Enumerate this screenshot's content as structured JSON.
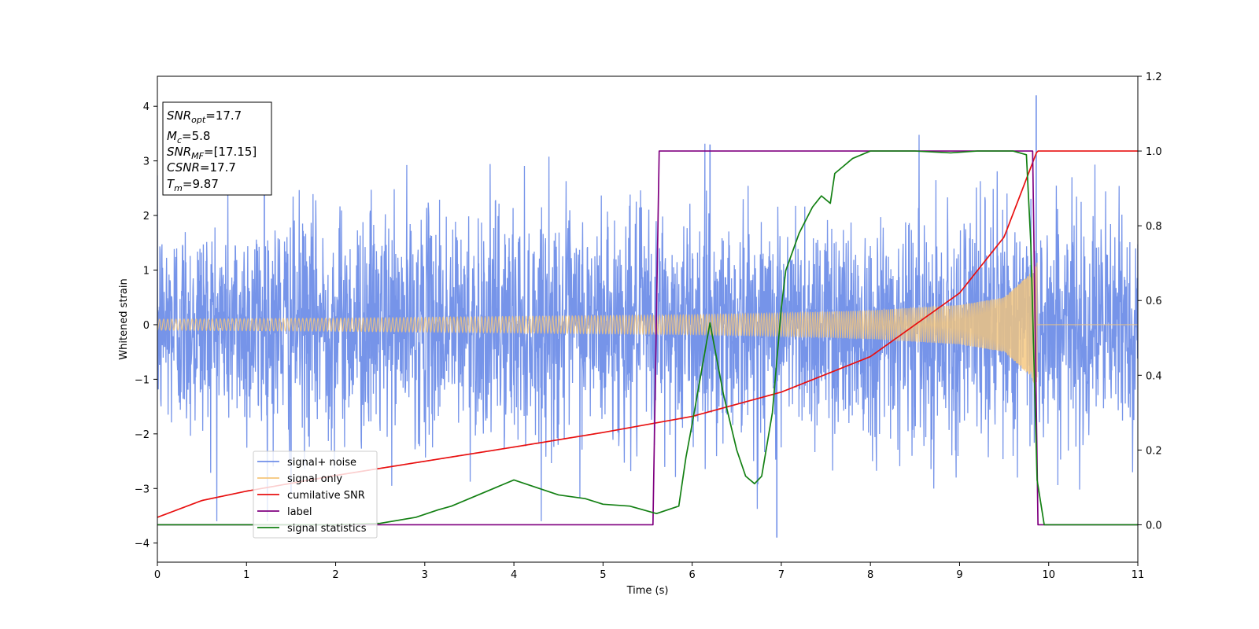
{
  "chart_data": {
    "type": "line",
    "xlabel": "Time (s)",
    "ylabel": "Whitened strain",
    "xlim": [
      0,
      11
    ],
    "ylim_left": [
      -4.35,
      4.55
    ],
    "ylim_right": [
      -0.1,
      1.2
    ],
    "xticks": [
      0,
      1,
      2,
      3,
      4,
      5,
      6,
      7,
      8,
      9,
      10,
      11
    ],
    "yticks_left": [
      -4,
      -3,
      -2,
      -1,
      0,
      1,
      2,
      3,
      4
    ],
    "yticks_right": [
      0.0,
      0.2,
      0.4,
      0.6,
      0.8,
      1.0,
      1.2
    ],
    "right_axis": true,
    "grid": false,
    "legend_position": "lower-left",
    "info_box": {
      "snr_opt": {
        "base": "SNR",
        "sub": "opt",
        "value": "=17.7"
      },
      "mc": {
        "base": "M",
        "sub": "c",
        "value": "=5.8"
      },
      "snr_mf": {
        "base": "SNR",
        "sub": "MF",
        "value": "=[17.15]"
      },
      "csnr": {
        "base": "CSNR",
        "value": "=17.7"
      },
      "tm": {
        "base": "T",
        "sub": "m",
        "value": "=9.87"
      }
    },
    "series": [
      {
        "name": "signal+ noise",
        "color": "#6f8ee8",
        "axis": "left",
        "kind": "noise",
        "noise_std": 1.0,
        "t_start": 0,
        "t_end": 11,
        "notable_peaks": [
          [
            1.2,
            3.1
          ],
          [
            6.2,
            3.3
          ],
          [
            9.86,
            4.2
          ],
          [
            6.95,
            -3.9
          ],
          [
            1.5,
            -3.1
          ]
        ]
      },
      {
        "name": "signal only",
        "color": "#f5c67a",
        "axis": "left",
        "kind": "chirp",
        "t_start": 0,
        "t_merge": 9.87,
        "amplitude_envelope": {
          "x": [
            0,
            2,
            4,
            6,
            7,
            8,
            9,
            9.5,
            9.8,
            9.87
          ],
          "y": [
            0.1,
            0.12,
            0.15,
            0.18,
            0.21,
            0.26,
            0.36,
            0.5,
            0.95,
            1.2
          ]
        }
      },
      {
        "name": "cumilative SNR",
        "color": "#e81010",
        "axis": "right",
        "x": [
          0,
          0.5,
          1,
          2,
          3,
          4,
          5,
          6,
          7,
          8,
          9,
          9.5,
          9.87,
          11
        ],
        "y": [
          0.02,
          0.065,
          0.09,
          0.132,
          0.17,
          0.208,
          0.247,
          0.29,
          0.355,
          0.45,
          0.62,
          0.77,
          1.0,
          1.0
        ]
      },
      {
        "name": "label",
        "color": "#800080",
        "axis": "right",
        "x": [
          0,
          5.56,
          5.63,
          9.82,
          9.88,
          11
        ],
        "y": [
          0,
          0,
          1,
          1,
          0,
          0
        ]
      },
      {
        "name": "signal statistics",
        "color": "#138013",
        "axis": "right",
        "x": [
          0,
          1,
          2,
          2.5,
          2.9,
          3.15,
          3.3,
          3.5,
          3.8,
          4.0,
          4.25,
          4.5,
          4.8,
          5.0,
          5.3,
          5.6,
          5.85,
          5.93,
          6.0,
          6.2,
          6.35,
          6.5,
          6.6,
          6.7,
          6.78,
          6.9,
          7.0,
          7.05,
          7.2,
          7.35,
          7.45,
          7.55,
          7.6,
          7.7,
          7.8,
          7.9,
          8.0,
          8.2,
          8.5,
          8.9,
          9.2,
          9.6,
          9.75,
          9.8,
          9.87,
          9.95,
          10.2,
          11
        ],
        "y": [
          0,
          0,
          0,
          0.004,
          0.02,
          0.04,
          0.05,
          0.07,
          0.1,
          0.12,
          0.1,
          0.08,
          0.07,
          0.055,
          0.05,
          0.03,
          0.05,
          0.18,
          0.27,
          0.54,
          0.35,
          0.2,
          0.13,
          0.11,
          0.13,
          0.3,
          0.58,
          0.68,
          0.78,
          0.85,
          0.88,
          0.86,
          0.94,
          0.96,
          0.98,
          0.99,
          1.0,
          1.0,
          1.0,
          0.995,
          1.0,
          1.0,
          0.99,
          0.75,
          0.12,
          0.0,
          0.0,
          0.0
        ]
      }
    ]
  }
}
